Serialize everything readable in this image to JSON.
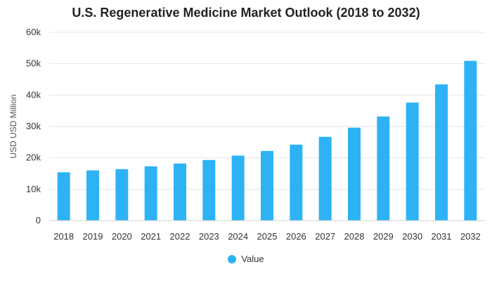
{
  "chart_data": {
    "type": "bar",
    "title": "U.S. Regenerative Medicine Market Outlook (2018 to 2032)",
    "xlabel": "",
    "ylabel": "USD USD Million",
    "ylim": [
      0,
      60000
    ],
    "yticks": [
      0,
      10000,
      20000,
      30000,
      40000,
      50000,
      60000
    ],
    "ytick_labels": [
      "0",
      "10k",
      "20k",
      "30k",
      "40k",
      "50k",
      "60k"
    ],
    "grid": true,
    "legend_position": "bottom-center",
    "categories": [
      "2018",
      "2019",
      "2020",
      "2021",
      "2022",
      "2023",
      "2024",
      "2025",
      "2026",
      "2027",
      "2028",
      "2029",
      "2030",
      "2031",
      "2032"
    ],
    "series": [
      {
        "name": "Value",
        "color": "#2db3f5",
        "values": [
          15400,
          16000,
          16400,
          17300,
          18200,
          19300,
          20700,
          22200,
          24200,
          26700,
          29600,
          33200,
          37600,
          43400,
          50900
        ]
      }
    ]
  }
}
